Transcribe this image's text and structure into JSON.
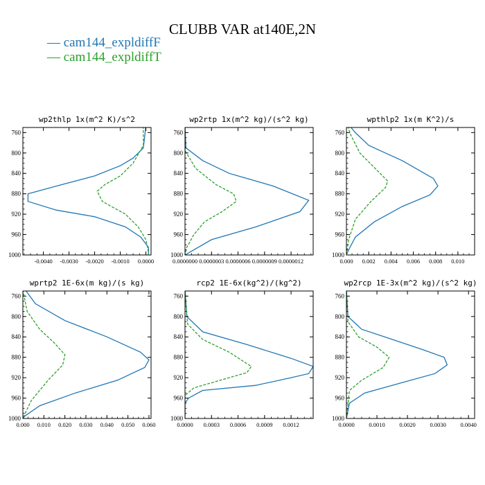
{
  "title": "CLUBB VAR at140E,2N",
  "legend": [
    {
      "label": "— cam144_expldiffF",
      "color": "#1f77b4"
    },
    {
      "label": "— cam144_expldiffT",
      "color": "#2ca02c"
    }
  ],
  "chart_data": [
    {
      "type": "line",
      "title": "wp2thlp  1x(m^2 K)/s^2",
      "ylim": [
        1000,
        750
      ],
      "yticks": [
        760,
        800,
        840,
        880,
        920,
        960,
        1000
      ],
      "xlim": [
        -0.0048,
        0.0002
      ],
      "xticks": [
        -0.004,
        -0.003,
        -0.002,
        -0.001,
        0.0
      ],
      "xticklabels": [
        "-0.0040",
        "-0.0030",
        "-0.0020",
        "-0.0010",
        "0.0000"
      ],
      "series": [
        {
          "name": "cam144_expldiffF",
          "color": "#1f77b4",
          "dashed": false,
          "points": [
            [
              0.0,
              747
            ],
            [
              -0.0001,
              790
            ],
            [
              -0.0005,
              810
            ],
            [
              -0.001,
              825
            ],
            [
              -0.002,
              845
            ],
            [
              -0.0035,
              865
            ],
            [
              -0.0046,
              880
            ],
            [
              -0.0046,
              895
            ],
            [
              -0.0035,
              912
            ],
            [
              -0.002,
              925
            ],
            [
              -0.0008,
              945
            ],
            [
              -0.0002,
              965
            ],
            [
              0.0001,
              985
            ],
            [
              0.0001,
              1000
            ]
          ]
        },
        {
          "name": "cam144_expldiffT",
          "color": "#2ca02c",
          "dashed": true,
          "points": [
            [
              -0.0001,
              747
            ],
            [
              -0.0001,
              785
            ],
            [
              -0.0005,
              820
            ],
            [
              -0.001,
              845
            ],
            [
              -0.0016,
              862
            ],
            [
              -0.0019,
              875
            ],
            [
              -0.0017,
              895
            ],
            [
              -0.0008,
              920
            ],
            [
              -0.0003,
              945
            ],
            [
              0.0,
              970
            ],
            [
              0.0001,
              995
            ],
            [
              0.0001,
              1000
            ]
          ]
        }
      ]
    },
    {
      "type": "line",
      "title": "wp2rtp  1x(m^2 kg)/(s^2 kg)",
      "ylim": [
        1000,
        750
      ],
      "yticks": [
        760,
        800,
        840,
        880,
        920,
        960,
        1000
      ],
      "xlim": [
        0.0,
        1.45e-06
      ],
      "xticks": [
        0.0,
        3e-07,
        6e-07,
        9e-07,
        1.2e-06
      ],
      "xticklabels": [
        "0.0000000",
        "0.0000003",
        "0.0000006",
        "0.0000009",
        "0.0000012"
      ],
      "series": [
        {
          "name": "cam144_expldiffF",
          "color": "#1f77b4",
          "dashed": false,
          "points": [
            [
              0.0,
              747
            ],
            [
              1e-08,
              790
            ],
            [
              2e-07,
              815
            ],
            [
              5e-07,
              840
            ],
            [
              1e-06,
              865
            ],
            [
              1.4e-06,
              893
            ],
            [
              1.3e-06,
              915
            ],
            [
              8e-07,
              945
            ],
            [
              3e-07,
              970
            ],
            [
              5e-08,
              995
            ],
            [
              0.0,
              1000
            ]
          ]
        },
        {
          "name": "cam144_expldiffT",
          "color": "#2ca02c",
          "dashed": true,
          "points": [
            [
              0.0,
              747
            ],
            [
              0.0,
              795
            ],
            [
              1.2e-07,
              830
            ],
            [
              3.5e-07,
              862
            ],
            [
              5.5e-07,
              880
            ],
            [
              5.8e-07,
              895
            ],
            [
              4.2e-07,
              915
            ],
            [
              2.2e-07,
              935
            ],
            [
              1e-07,
              960
            ],
            [
              2e-08,
              985
            ],
            [
              0.0,
              1000
            ]
          ]
        }
      ]
    },
    {
      "type": "line",
      "title": "wpthlp2  1x(m K^2)/s",
      "ylim": [
        1000,
        750
      ],
      "yticks": [
        760,
        800,
        840,
        880,
        920,
        960,
        1000
      ],
      "xlim": [
        0.0,
        0.0115
      ],
      "xticks": [
        0.0,
        0.002,
        0.004,
        0.006,
        0.008,
        0.01
      ],
      "xticklabels": [
        "0.000",
        "0.002",
        "0.004",
        "0.006",
        "0.008",
        "0.010"
      ],
      "series": [
        {
          "name": "cam144_expldiffF",
          "color": "#1f77b4",
          "dashed": false,
          "points": [
            [
              0.0003,
              747
            ],
            [
              0.0008,
              760
            ],
            [
              0.002,
              785
            ],
            [
              0.005,
              815
            ],
            [
              0.0078,
              850
            ],
            [
              0.0082,
              865
            ],
            [
              0.0075,
              882
            ],
            [
              0.005,
              905
            ],
            [
              0.0025,
              935
            ],
            [
              0.0008,
              965
            ],
            [
              0.0002,
              990
            ],
            [
              0.0,
              1000
            ]
          ]
        },
        {
          "name": "cam144_expldiffT",
          "color": "#2ca02c",
          "dashed": true,
          "points": [
            [
              0.0001,
              747
            ],
            [
              0.0004,
              765
            ],
            [
              0.0012,
              800
            ],
            [
              0.0028,
              835
            ],
            [
              0.0037,
              855
            ],
            [
              0.0035,
              868
            ],
            [
              0.0022,
              895
            ],
            [
              0.0008,
              930
            ],
            [
              0.0002,
              970
            ],
            [
              0.0,
              1000
            ]
          ]
        }
      ]
    },
    {
      "type": "line",
      "title": "wprtp2  1E-6x(m kg)/(s kg)",
      "ylim": [
        1000,
        750
      ],
      "yticks": [
        760,
        800,
        840,
        880,
        920,
        960,
        1000
      ],
      "xlim": [
        0.0,
        0.061
      ],
      "xticks": [
        0.0,
        0.01,
        0.02,
        0.03,
        0.04,
        0.05,
        0.06
      ],
      "xticklabels": [
        "0.000",
        "0.010",
        "0.020",
        "0.030",
        "0.040",
        "0.050",
        "0.060"
      ],
      "series": [
        {
          "name": "cam144_expldiffF",
          "color": "#1f77b4",
          "dashed": false,
          "points": [
            [
              0.001,
              747
            ],
            [
              0.006,
              775
            ],
            [
              0.02,
              808
            ],
            [
              0.04,
              840
            ],
            [
              0.056,
              870
            ],
            [
              0.06,
              885
            ],
            [
              0.058,
              900
            ],
            [
              0.045,
              925
            ],
            [
              0.025,
              950
            ],
            [
              0.008,
              975
            ],
            [
              0.001,
              995
            ],
            [
              0.0,
              1000
            ]
          ]
        },
        {
          "name": "cam144_expldiffT",
          "color": "#2ca02c",
          "dashed": true,
          "points": [
            [
              0.0,
              747
            ],
            [
              0.002,
              790
            ],
            [
              0.008,
              825
            ],
            [
              0.015,
              852
            ],
            [
              0.02,
              875
            ],
            [
              0.019,
              895
            ],
            [
              0.012,
              925
            ],
            [
              0.004,
              965
            ],
            [
              0.0005,
              995
            ],
            [
              0.0,
              1000
            ]
          ]
        }
      ]
    },
    {
      "type": "line",
      "title": "rcp2  1E-6x(kg^2)/(kg^2)",
      "ylim": [
        1000,
        750
      ],
      "yticks": [
        760,
        800,
        840,
        880,
        920,
        960,
        1000
      ],
      "xlim": [
        0.0,
        0.00145
      ],
      "xticks": [
        0.0,
        0.0003,
        0.0006,
        0.0009,
        0.0012
      ],
      "xticklabels": [
        "0.0000",
        "0.0003",
        "0.0006",
        "0.0009",
        "0.0012"
      ],
      "series": [
        {
          "name": "cam144_expldiffF",
          "color": "#1f77b4",
          "dashed": false,
          "points": [
            [
              0.0,
              747
            ],
            [
              2e-05,
              800
            ],
            [
              0.0002,
              830
            ],
            [
              0.0007,
              855
            ],
            [
              0.0012,
              882
            ],
            [
              0.00145,
              898
            ],
            [
              0.0014,
              912
            ],
            [
              0.0012,
              920
            ],
            [
              0.0008,
              935
            ],
            [
              0.0002,
              945
            ],
            [
              4e-05,
              960
            ],
            [
              0.0,
              970
            ],
            [
              0.0,
              1000
            ]
          ]
        },
        {
          "name": "cam144_expldiffT",
          "color": "#2ca02c",
          "dashed": true,
          "points": [
            [
              0.0,
              747
            ],
            [
              3e-05,
              815
            ],
            [
              0.0002,
              845
            ],
            [
              0.0005,
              870
            ],
            [
              0.00075,
              898
            ],
            [
              0.0007,
              910
            ],
            [
              0.0004,
              925
            ],
            [
              0.0001,
              940
            ],
            [
              0.0,
              955
            ],
            [
              0.0,
              1000
            ]
          ]
        }
      ]
    },
    {
      "type": "line",
      "title": "wp2rcp  1E-3x(m^2 kg)/(s^2 kg)",
      "ylim": [
        1000,
        750
      ],
      "yticks": [
        760,
        800,
        840,
        880,
        920,
        960,
        1000
      ],
      "xlim": [
        0.0,
        0.0042
      ],
      "xticks": [
        0.0,
        0.001,
        0.002,
        0.003,
        0.004
      ],
      "xticklabels": [
        "0.0000",
        "0.0010",
        "0.0020",
        "0.0030",
        "0.0040"
      ],
      "series": [
        {
          "name": "cam144_expldiffF",
          "color": "#1f77b4",
          "dashed": false,
          "points": [
            [
              0.0,
              747
            ],
            [
              5e-05,
              800
            ],
            [
              0.0005,
              825
            ],
            [
              0.0015,
              845
            ],
            [
              0.0025,
              865
            ],
            [
              0.0032,
              880
            ],
            [
              0.0033,
              895
            ],
            [
              0.0029,
              912
            ],
            [
              0.0018,
              930
            ],
            [
              0.0006,
              950
            ],
            [
              0.0001,
              970
            ],
            [
              0.0,
              1000
            ]
          ]
        },
        {
          "name": "cam144_expldiffT",
          "color": "#2ca02c",
          "dashed": true,
          "points": [
            [
              0.0,
              747
            ],
            [
              5e-05,
              810
            ],
            [
              0.0004,
              840
            ],
            [
              0.001,
              860
            ],
            [
              0.0014,
              880
            ],
            [
              0.0012,
              900
            ],
            [
              0.0005,
              925
            ],
            [
              0.0001,
              945
            ],
            [
              0.0,
              1000
            ]
          ]
        }
      ]
    }
  ]
}
